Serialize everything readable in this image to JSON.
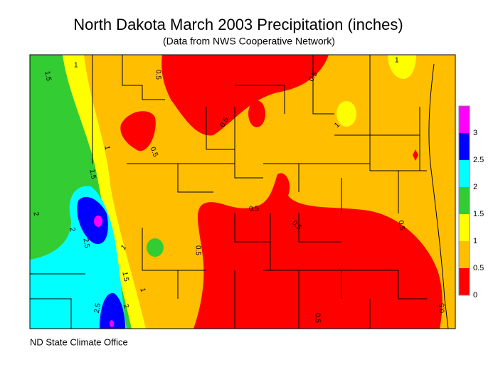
{
  "header": {
    "title": "North Dakota March 2003 Precipitation (inches)",
    "subtitle": "(Data from NWS Cooperative Network)"
  },
  "legend": {
    "items": [
      {
        "label": "0",
        "color": "#ff0000"
      },
      {
        "label": "0.5",
        "color": "#ffbf00"
      },
      {
        "label": "1",
        "color": "#ffff00"
      },
      {
        "label": "1.5",
        "color": "#33cc33"
      },
      {
        "label": "2",
        "color": "#00ffff"
      },
      {
        "label": "2.5",
        "color": "#0000ff"
      },
      {
        "label": "3",
        "color": "#ff00ff"
      }
    ]
  },
  "map": {
    "contour_labels": [
      "1.5",
      "1",
      "0.5",
      "0.5",
      "0.5",
      "0.5",
      "1",
      "1.5",
      "1",
      "2",
      "2",
      "2.5",
      "1.5",
      "1",
      "0.5",
      "0.5",
      "0.5",
      "0.5",
      "0.5",
      "0.5",
      "2.5",
      "2",
      "1",
      "1"
    ]
  },
  "footer": {
    "credit": "ND State Climate Office"
  }
}
